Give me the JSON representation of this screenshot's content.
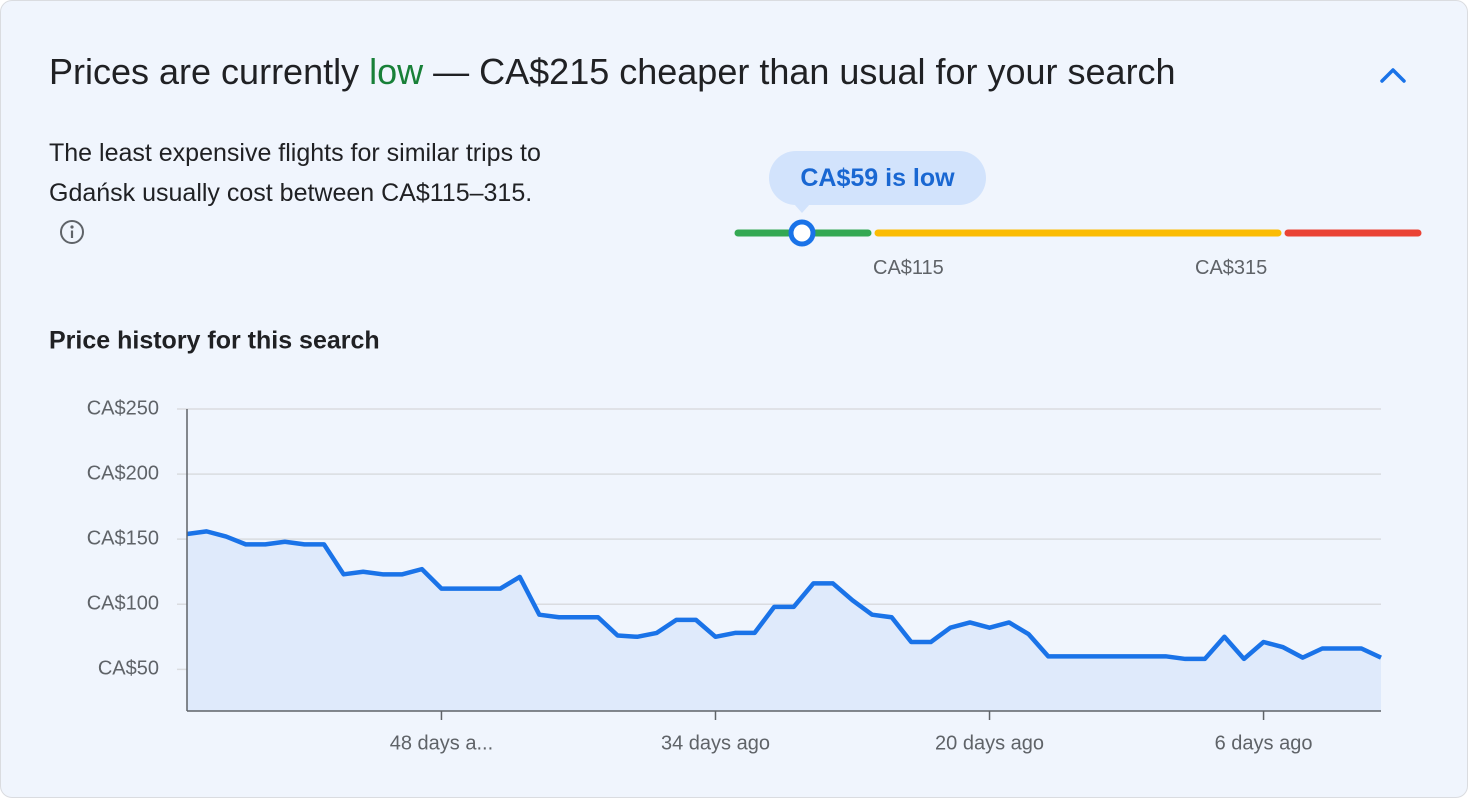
{
  "header": {
    "title_before": "Prices are currently ",
    "title_highlight": "low",
    "title_after": " — CA$215 cheaper than usual for your search"
  },
  "description": "The least expensive flights for similar trips to Gdańsk usually cost between CA$115–315.",
  "price_range": {
    "tooltip": "CA$59 is low",
    "low_label": "CA$115",
    "high_label": "CA$315"
  },
  "chart_data": {
    "type": "area",
    "title": "Price history for this search",
    "color": "#1a73e8",
    "x": [
      61,
      60,
      59,
      58,
      57,
      56,
      55,
      54,
      53,
      52,
      51,
      50,
      49,
      48,
      47,
      46,
      45,
      44,
      43,
      42,
      41,
      40,
      39,
      38,
      37,
      36,
      35,
      34,
      33,
      32,
      31,
      30,
      29,
      28,
      27,
      26,
      25,
      24,
      23,
      22,
      21,
      20,
      19,
      18,
      17,
      16,
      15,
      14,
      13,
      12,
      11,
      10,
      9,
      8,
      7,
      6,
      5,
      4,
      3,
      2,
      1,
      0
    ],
    "values": [
      154,
      156,
      152,
      146,
      146,
      148,
      146,
      146,
      123,
      125,
      123,
      123,
      127,
      112,
      112,
      112,
      112,
      121,
      92,
      90,
      90,
      90,
      76,
      75,
      78,
      88,
      88,
      75,
      78,
      78,
      98,
      98,
      116,
      116,
      103,
      92,
      90,
      71,
      71,
      82,
      86,
      82,
      86,
      77,
      60,
      60,
      60,
      60,
      60,
      60,
      60,
      58,
      58,
      75,
      58,
      71,
      67,
      59,
      66,
      66,
      66,
      59
    ],
    "xlim": [
      61,
      0
    ],
    "ylim": [
      18,
      250
    ],
    "xticks": [
      {
        "value": 48,
        "label": "48 days a..."
      },
      {
        "value": 34,
        "label": "34 days ago"
      },
      {
        "value": 20,
        "label": "20 days ago"
      },
      {
        "value": 6,
        "label": "6 days ago"
      }
    ],
    "yticks": [
      {
        "value": 50,
        "label": "CA$50"
      },
      {
        "value": 100,
        "label": "CA$100"
      },
      {
        "value": 150,
        "label": "CA$150"
      },
      {
        "value": 200,
        "label": "CA$200"
      },
      {
        "value": 250,
        "label": "CA$250"
      }
    ],
    "grid": true
  }
}
